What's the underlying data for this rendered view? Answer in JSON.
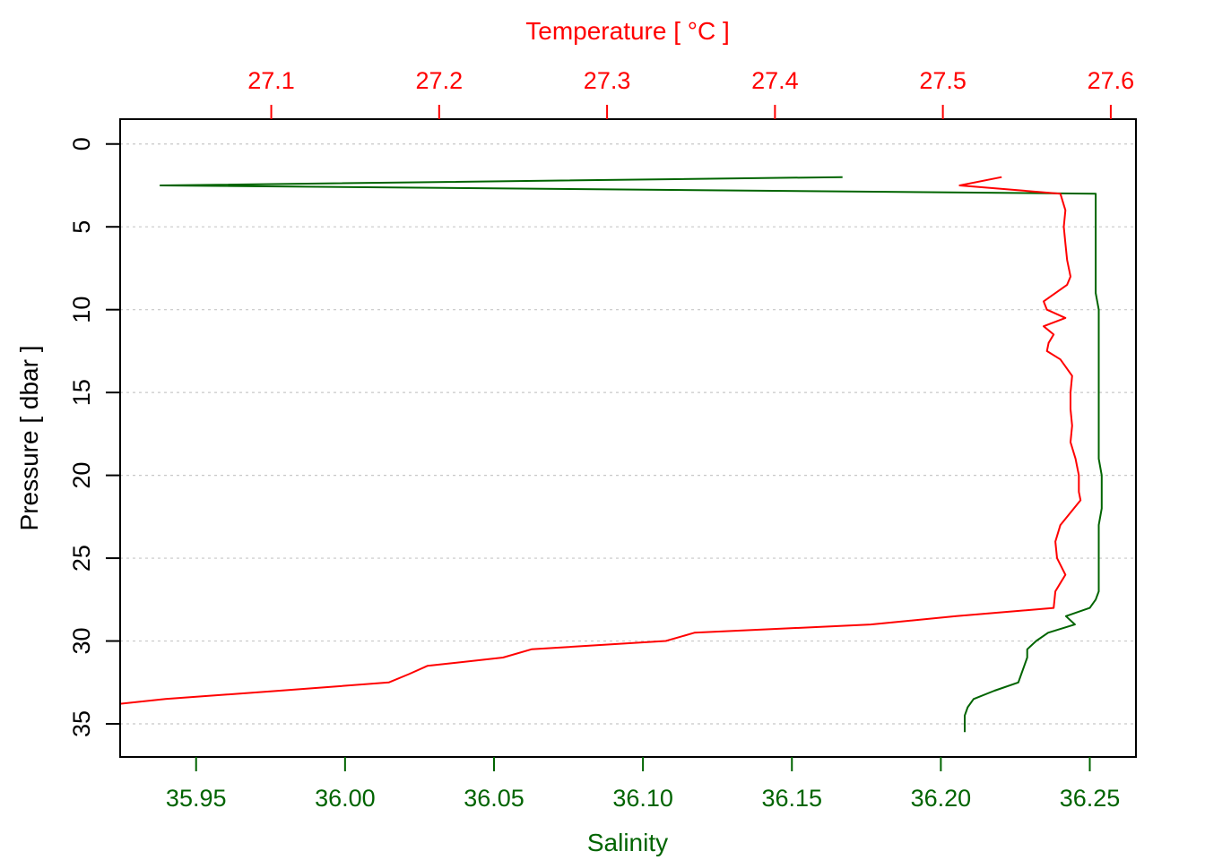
{
  "chart_data": {
    "type": "line",
    "title": "",
    "colors": {
      "salinity": "#006400",
      "temperature": "#ff0000",
      "axis": "#000000",
      "grid": "#c8c8c8"
    },
    "grid": true,
    "legend": "none",
    "x_bottom": {
      "label": "Salinity",
      "range": [
        35.9245,
        36.2655
      ],
      "ticks": [
        35.95,
        36.0,
        36.05,
        36.1,
        36.15,
        36.2,
        36.25
      ],
      "tick_labels": [
        "35.95",
        "36.00",
        "36.05",
        "36.10",
        "36.15",
        "36.20",
        "36.25"
      ]
    },
    "x_top": {
      "label": "Temperature [ °C ]",
      "range": [
        27.01,
        27.615
      ],
      "ticks": [
        27.1,
        27.2,
        27.3,
        27.4,
        27.5,
        27.6
      ],
      "tick_labels": [
        "27.1",
        "27.2",
        "27.3",
        "27.4",
        "27.5",
        "27.6"
      ]
    },
    "y": {
      "label": "Pressure [ dbar ]",
      "range": [
        -1.5,
        37
      ],
      "reversed": true,
      "ticks": [
        0,
        5,
        10,
        15,
        20,
        25,
        30,
        35
      ],
      "tick_labels": [
        "0",
        "5",
        "10",
        "15",
        "20",
        "25",
        "30",
        "35"
      ]
    },
    "series": [
      {
        "key": "salinity",
        "axis": "bottom",
        "pressure": [
          2.0,
          2.5,
          3.0,
          4,
          5,
          6,
          7,
          8,
          9,
          10,
          11,
          12,
          13,
          14,
          15,
          16,
          17,
          18,
          19,
          20,
          21,
          22,
          23,
          24,
          25,
          26,
          27,
          27.5,
          28.0,
          28.5,
          29.0,
          29.5,
          30.0,
          30.5,
          31.0,
          31.5,
          32.0,
          32.5,
          33.0,
          33.5,
          34.0,
          34.5,
          35.0,
          35.5
        ],
        "values": [
          36.167,
          35.938,
          36.252,
          36.252,
          36.252,
          36.252,
          36.252,
          36.252,
          36.252,
          36.253,
          36.253,
          36.253,
          36.253,
          36.253,
          36.253,
          36.253,
          36.253,
          36.253,
          36.253,
          36.254,
          36.254,
          36.254,
          36.253,
          36.253,
          36.253,
          36.253,
          36.253,
          36.252,
          36.25,
          36.242,
          36.245,
          36.236,
          36.232,
          36.229,
          36.229,
          36.228,
          36.227,
          36.226,
          36.218,
          36.211,
          36.209,
          36.208,
          36.208,
          36.208
        ]
      },
      {
        "key": "temperature",
        "axis": "top",
        "pressure": [
          2.0,
          2.5,
          3.0,
          4.0,
          5.0,
          6.0,
          7.0,
          8.0,
          8.5,
          9.0,
          9.5,
          10.0,
          10.5,
          11.0,
          11.5,
          12.0,
          12.5,
          13.0,
          14.0,
          15.0,
          16.0,
          17.0,
          18.0,
          19.0,
          20.0,
          21.0,
          21.5,
          22.0,
          23.0,
          24.0,
          25.0,
          26.0,
          26.5,
          27.0,
          28.0,
          28.5,
          29.0,
          29.5,
          30.0,
          30.5,
          31.0,
          31.5,
          32.0,
          32.5,
          33.0,
          33.5,
          34.0,
          34.5,
          35.0,
          35.5
        ],
        "values": [
          27.535,
          27.51,
          27.57,
          27.573,
          27.572,
          27.573,
          27.574,
          27.576,
          27.574,
          27.567,
          27.56,
          27.562,
          27.573,
          27.56,
          27.566,
          27.563,
          27.562,
          27.57,
          27.577,
          27.576,
          27.576,
          27.577,
          27.576,
          27.579,
          27.581,
          27.581,
          27.582,
          27.578,
          27.57,
          27.567,
          27.568,
          27.573,
          27.57,
          27.567,
          27.566,
          27.508,
          27.457,
          27.352,
          27.335,
          27.255,
          27.238,
          27.193,
          27.182,
          27.17,
          27.105,
          27.037,
          26.99,
          26.992,
          26.985,
          26.982
        ]
      }
    ]
  }
}
